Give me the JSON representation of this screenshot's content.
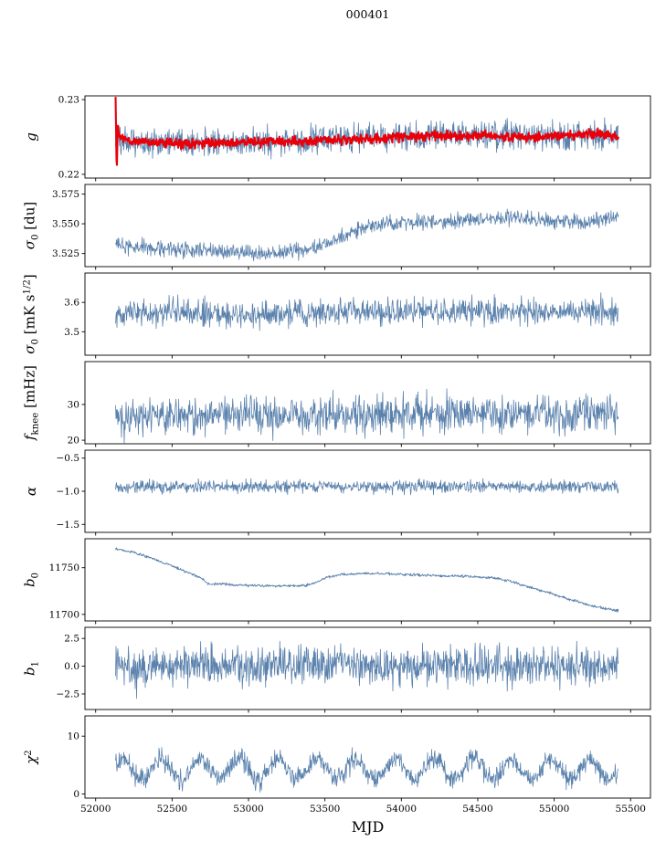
{
  "chart_data": {
    "type": "line",
    "title": "000401",
    "xlabel": "MJD",
    "x_range": [
      51930,
      55630
    ],
    "x_data_range": [
      52130,
      55420
    ],
    "x_ticks": [
      52000,
      52500,
      53000,
      53500,
      54000,
      54500,
      55000,
      55500
    ],
    "x_tick_labels": [
      "52000",
      "52500",
      "53000",
      "53500",
      "54000",
      "54500",
      "55000",
      "55500"
    ],
    "line_color": "#5b82ad",
    "highlight_color": "#e8000b",
    "panels": [
      {
        "name": "g",
        "ylabel": [
          {
            "t": "g",
            "style": "italic"
          }
        ],
        "ylim": [
          0.2195,
          0.2305
        ],
        "yticks": [
          0.22,
          0.23
        ],
        "ytick_labels": [
          "0.22",
          "0.23"
        ],
        "series": [
          {
            "name": "g-estimate",
            "color": "#5b82ad",
            "width": 0.8,
            "samples": 1100,
            "noise": 0.0009,
            "outlier": {
              "prob": 0.006,
              "scale": 3.2
            },
            "trend": [
              [
                52130,
                0.2246
              ],
              [
                52300,
                0.2242
              ],
              [
                52600,
                0.2243
              ],
              [
                53000,
                0.2243
              ],
              [
                53400,
                0.2245
              ],
              [
                53700,
                0.2248
              ],
              [
                54000,
                0.2251
              ],
              [
                54300,
                0.2252
              ],
              [
                54600,
                0.2252
              ],
              [
                54900,
                0.225
              ],
              [
                55150,
                0.2252
              ],
              [
                55420,
                0.225
              ]
            ]
          },
          {
            "name": "g-smoothed",
            "color": "#e8000b",
            "width": 2.1,
            "samples": 1100,
            "noise": 0.0003,
            "trend": [
              [
                52130,
                0.2304
              ],
              [
                52137,
                0.2199
              ],
              [
                52145,
                0.2262
              ],
              [
                52160,
                0.225
              ],
              [
                52250,
                0.2243
              ],
              [
                52500,
                0.2241
              ],
              [
                52900,
                0.2242
              ],
              [
                53300,
                0.2244
              ],
              [
                53700,
                0.2247
              ],
              [
                54000,
                0.225
              ],
              [
                54300,
                0.2252
              ],
              [
                54600,
                0.2251
              ],
              [
                54900,
                0.225
              ],
              [
                55150,
                0.2253
              ],
              [
                55300,
                0.2255
              ],
              [
                55420,
                0.225
              ]
            ]
          }
        ]
      },
      {
        "name": "sigma0-du",
        "ylabel": [
          {
            "t": "σ",
            "style": "italic"
          },
          {
            "t": "0",
            "style": "sub"
          },
          {
            "t": " [du]"
          }
        ],
        "ylim": [
          3.514,
          3.583
        ],
        "yticks": [
          3.525,
          3.55,
          3.575
        ],
        "ytick_labels": [
          "3.525",
          "3.550",
          "3.575"
        ],
        "series": [
          {
            "name": "sigma0-du",
            "color": "#5b82ad",
            "width": 0.8,
            "samples": 1100,
            "noise": 0.0033,
            "trend": [
              [
                52130,
                3.532
              ],
              [
                52350,
                3.53
              ],
              [
                52600,
                3.528
              ],
              [
                52850,
                3.527
              ],
              [
                53050,
                3.525
              ],
              [
                53250,
                3.526
              ],
              [
                53450,
                3.53
              ],
              [
                53600,
                3.538
              ],
              [
                53750,
                3.546
              ],
              [
                53900,
                3.55
              ],
              [
                54100,
                3.551
              ],
              [
                54350,
                3.552
              ],
              [
                54550,
                3.554
              ],
              [
                54750,
                3.556
              ],
              [
                54950,
                3.552
              ],
              [
                55150,
                3.551
              ],
              [
                55300,
                3.553
              ],
              [
                55420,
                3.557
              ]
            ]
          }
        ]
      },
      {
        "name": "sigma0-mk",
        "ylabel": [
          {
            "t": "σ",
            "style": "italic"
          },
          {
            "t": "0",
            "style": "sub"
          },
          {
            "t": " [mK s"
          },
          {
            "t": "1/2",
            "style": "sup"
          },
          {
            "t": "]"
          }
        ],
        "ylim": [
          3.42,
          3.7
        ],
        "yticks": [
          3.5,
          3.6
        ],
        "ytick_labels": [
          "3.5",
          "3.6"
        ],
        "series": [
          {
            "name": "sigma0-mk",
            "color": "#5b82ad",
            "width": 0.8,
            "samples": 1100,
            "noise": 0.022,
            "outlier": {
              "prob": 0.006,
              "scale": 2.0
            },
            "trend": [
              [
                52130,
                3.562
              ],
              [
                52500,
                3.568
              ],
              [
                52800,
                3.56
              ],
              [
                53000,
                3.552
              ],
              [
                53200,
                3.562
              ],
              [
                53500,
                3.566
              ],
              [
                53800,
                3.57
              ],
              [
                54200,
                3.567
              ],
              [
                54600,
                3.57
              ],
              [
                55000,
                3.566
              ],
              [
                55250,
                3.57
              ],
              [
                55420,
                3.558
              ]
            ]
          }
        ]
      },
      {
        "name": "fknee",
        "ylabel": [
          {
            "t": "f",
            "style": "italic"
          },
          {
            "t": "knee",
            "style": "sub"
          },
          {
            "t": " [mHz]"
          }
        ],
        "ylim": [
          19,
          42
        ],
        "yticks": [
          20,
          30
        ],
        "ytick_labels": [
          "20",
          "30"
        ],
        "series": [
          {
            "name": "fknee",
            "color": "#5b82ad",
            "width": 0.8,
            "samples": 1100,
            "noise": 2.6,
            "outlier": {
              "prob": 0.01,
              "scale": 1.8
            },
            "trend": [
              [
                52130,
                26.5
              ],
              [
                52800,
                26.8
              ],
              [
                53500,
                27.0
              ],
              [
                54200,
                27.3
              ],
              [
                54800,
                27.4
              ],
              [
                55420,
                27.6
              ]
            ]
          }
        ]
      },
      {
        "name": "alpha",
        "ylabel": [
          {
            "t": "α",
            "style": "italic"
          }
        ],
        "ylim": [
          -1.62,
          -0.38
        ],
        "yticks": [
          -0.5,
          -1.0,
          -1.5
        ],
        "ytick_labels": [
          "−0.5",
          "−1.0",
          "−1.5"
        ],
        "series": [
          {
            "name": "alpha",
            "color": "#5b82ad",
            "width": 0.8,
            "samples": 1100,
            "noise": 0.045,
            "outlier": {
              "prob": 0.006,
              "scale": 2.0
            },
            "trend": [
              [
                52130,
                -0.93
              ],
              [
                53000,
                -0.93
              ],
              [
                54000,
                -0.925
              ],
              [
                55420,
                -0.93
              ]
            ]
          }
        ]
      },
      {
        "name": "b0",
        "ylabel": [
          {
            "t": "b",
            "style": "italic"
          },
          {
            "t": "0",
            "style": "sub"
          }
        ],
        "ylim": [
          11693,
          11781
        ],
        "yticks": [
          11700,
          11750
        ],
        "ytick_labels": [
          "11700",
          "11750"
        ],
        "series": [
          {
            "name": "b0",
            "color": "#5b82ad",
            "width": 0.9,
            "samples": 1100,
            "noise": 0.7,
            "trend": [
              [
                52130,
                11770
              ],
              [
                52230,
                11767
              ],
              [
                52350,
                11761
              ],
              [
                52500,
                11752
              ],
              [
                52620,
                11744
              ],
              [
                52700,
                11738
              ],
              [
                52730,
                11733
              ],
              [
                52850,
                11732
              ],
              [
                53000,
                11731
              ],
              [
                53200,
                11730.5
              ],
              [
                53380,
                11731
              ],
              [
                53450,
                11735
              ],
              [
                53520,
                11740
              ],
              [
                53620,
                11743
              ],
              [
                53750,
                11744
              ],
              [
                53900,
                11743.5
              ],
              [
                54050,
                11742.5
              ],
              [
                54250,
                11741.5
              ],
              [
                54450,
                11740.5
              ],
              [
                54600,
                11739
              ],
              [
                54700,
                11736
              ],
              [
                54800,
                11731
              ],
              [
                54950,
                11724
              ],
              [
                55100,
                11716
              ],
              [
                55250,
                11709
              ],
              [
                55380,
                11705
              ],
              [
                55420,
                11704
              ]
            ]
          }
        ]
      },
      {
        "name": "b1",
        "ylabel": [
          {
            "t": "b",
            "style": "italic"
          },
          {
            "t": "1",
            "style": "sub"
          }
        ],
        "ylim": [
          -3.9,
          3.5
        ],
        "yticks": [
          -2.5,
          0.0,
          2.5
        ],
        "ytick_labels": [
          "−2.5",
          "0.0",
          "2.5"
        ],
        "series": [
          {
            "name": "b1",
            "color": "#5b82ad",
            "width": 0.8,
            "samples": 1100,
            "noise": 0.85,
            "outlier": {
              "prob": 0.012,
              "scale": 2.6
            },
            "trend": [
              [
                52130,
                0
              ],
              [
                55420,
                0
              ]
            ]
          }
        ]
      },
      {
        "name": "chi2",
        "ylabel": [
          {
            "t": "χ",
            "style": "italic"
          },
          {
            "t": "2",
            "style": "sup"
          }
        ],
        "ylim": [
          -0.7,
          13.5
        ],
        "yticks": [
          0,
          10
        ],
        "ytick_labels": [
          "0",
          "10"
        ],
        "series": [
          {
            "name": "chi2",
            "color": "#5b82ad",
            "width": 0.8,
            "samples": 1100,
            "noise": 0.85,
            "osc": {
              "period": 255,
              "amplitude": 1.7,
              "phase": 0.5
            },
            "trend": [
              [
                52130,
                4.2
              ],
              [
                53000,
                4.4
              ],
              [
                54000,
                4.3
              ],
              [
                55420,
                4.2
              ]
            ]
          }
        ]
      }
    ]
  }
}
